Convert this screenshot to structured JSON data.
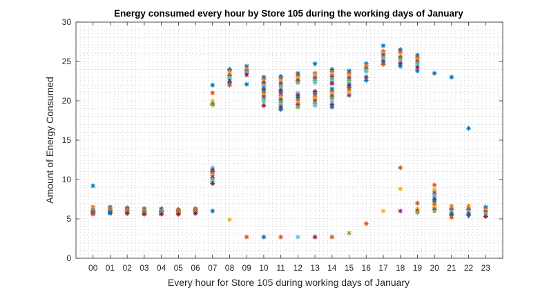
{
  "chart_data": {
    "type": "scatter",
    "title": "Energy consumed every hour by Store 105 during the working days of January",
    "xlabel": "Every hour for Store 105 during working days of January",
    "ylabel": "Amount of Energy Consumed",
    "ylim": [
      0,
      30
    ],
    "yticks": [
      0,
      5,
      10,
      15,
      20,
      25,
      30
    ],
    "categories": [
      "00",
      "01",
      "02",
      "03",
      "04",
      "05",
      "06",
      "07",
      "08",
      "09",
      "10",
      "11",
      "12",
      "13",
      "14",
      "15",
      "16",
      "17",
      "18",
      "19",
      "20",
      "21",
      "22",
      "23"
    ],
    "grid": "minor-dotted",
    "marker": "asterisk",
    "palette": [
      "#0072BD",
      "#D95319",
      "#EDB120",
      "#7E2F8E",
      "#77AC30",
      "#4DBEEE",
      "#A2142F"
    ],
    "points": [
      {
        "hour": "00",
        "values": [
          9.2,
          6.5,
          6.3,
          6.1,
          6.0,
          5.9,
          5.8,
          5.7,
          5.6
        ]
      },
      {
        "hour": "01",
        "values": [
          6.5,
          6.3,
          6.2,
          6.1,
          6.0,
          5.9,
          5.8,
          5.7
        ]
      },
      {
        "hour": "02",
        "values": [
          6.4,
          6.3,
          6.1,
          6.0,
          5.9,
          5.8,
          5.7
        ]
      },
      {
        "hour": "03",
        "values": [
          6.3,
          6.1,
          6.0,
          5.9,
          5.8,
          5.7,
          5.6
        ]
      },
      {
        "hour": "04",
        "values": [
          6.3,
          6.1,
          6.0,
          5.9,
          5.8,
          5.7,
          5.6
        ]
      },
      {
        "hour": "05",
        "values": [
          6.2,
          6.1,
          6.0,
          5.9,
          5.8,
          5.7,
          5.6
        ]
      },
      {
        "hour": "06",
        "values": [
          6.3,
          6.2,
          6.1,
          6.0,
          5.9,
          5.8,
          5.7
        ]
      },
      {
        "hour": "07",
        "values": [
          22.0,
          21.0,
          20.0,
          19.6,
          19.5,
          11.5,
          11.2,
          11.0,
          10.8,
          10.5,
          10.3,
          10.0,
          9.8,
          9.5,
          6.0
        ]
      },
      {
        "hour": "08",
        "values": [
          24.0,
          23.8,
          23.5,
          23.2,
          23.0,
          22.8,
          22.5,
          22.3,
          22.0,
          4.9
        ]
      },
      {
        "hour": "09",
        "values": [
          24.4,
          24.2,
          24.0,
          23.8,
          23.7,
          23.5,
          23.3,
          22.1,
          2.7
        ]
      },
      {
        "hour": "10",
        "values": [
          23.0,
          22.7,
          22.5,
          22.3,
          22.0,
          21.8,
          21.5,
          21.3,
          21.0,
          20.7,
          20.5,
          20.2,
          19.9,
          19.4,
          2.7
        ]
      },
      {
        "hour": "11",
        "values": [
          23.1,
          22.8,
          22.5,
          22.2,
          21.9,
          21.6,
          21.3,
          21.0,
          20.7,
          20.4,
          20.1,
          19.8,
          19.5,
          19.2,
          18.9,
          2.7
        ]
      },
      {
        "hour": "12",
        "values": [
          23.5,
          23.2,
          22.9,
          22.6,
          22.3,
          21.0,
          20.7,
          20.4,
          20.1,
          19.8,
          19.5,
          19.2,
          2.7
        ]
      },
      {
        "hour": "13",
        "values": [
          24.7,
          23.5,
          23.2,
          22.9,
          22.6,
          22.3,
          21.2,
          20.9,
          20.6,
          20.3,
          20.0,
          19.7,
          19.4,
          2.7
        ]
      },
      {
        "hour": "14",
        "values": [
          24.0,
          23.7,
          23.4,
          23.1,
          22.8,
          22.5,
          22.2,
          21.5,
          21.2,
          20.9,
          20.6,
          20.3,
          19.9,
          19.5,
          19.2,
          2.7
        ]
      },
      {
        "hour": "15",
        "values": [
          23.8,
          23.5,
          23.2,
          22.9,
          22.6,
          22.3,
          22.0,
          21.7,
          21.4,
          21.1,
          20.7,
          3.2
        ]
      },
      {
        "hour": "16",
        "values": [
          24.7,
          24.5,
          24.3,
          24.1,
          23.9,
          23.7,
          23.0,
          22.6,
          4.4
        ]
      },
      {
        "hour": "17",
        "values": [
          27.0,
          26.3,
          26.0,
          25.8,
          25.5,
          25.3,
          25.0,
          24.8,
          24.6,
          6.0
        ]
      },
      {
        "hour": "18",
        "values": [
          26.5,
          26.2,
          25.8,
          25.5,
          25.3,
          25.0,
          24.7,
          24.4,
          11.5,
          8.8,
          6.0
        ]
      },
      {
        "hour": "19",
        "values": [
          25.8,
          25.5,
          25.2,
          25.0,
          24.8,
          24.5,
          24.2,
          23.8,
          7.0,
          6.3,
          6.0,
          5.8
        ]
      },
      {
        "hour": "20",
        "values": [
          23.5,
          9.3,
          8.7,
          8.3,
          8.0,
          7.8,
          7.5,
          7.2,
          6.8,
          6.5,
          6.2,
          6.0
        ]
      },
      {
        "hour": "21",
        "values": [
          23.0,
          6.6,
          6.4,
          6.2,
          6.0,
          5.8,
          5.6,
          5.4,
          5.2
        ]
      },
      {
        "hour": "22",
        "values": [
          16.5,
          6.6,
          6.4,
          6.2,
          6.0,
          5.8,
          5.6,
          5.4
        ]
      },
      {
        "hour": "23",
        "values": [
          6.5,
          6.3,
          6.1,
          5.9,
          5.7,
          5.5,
          5.3
        ]
      }
    ]
  }
}
